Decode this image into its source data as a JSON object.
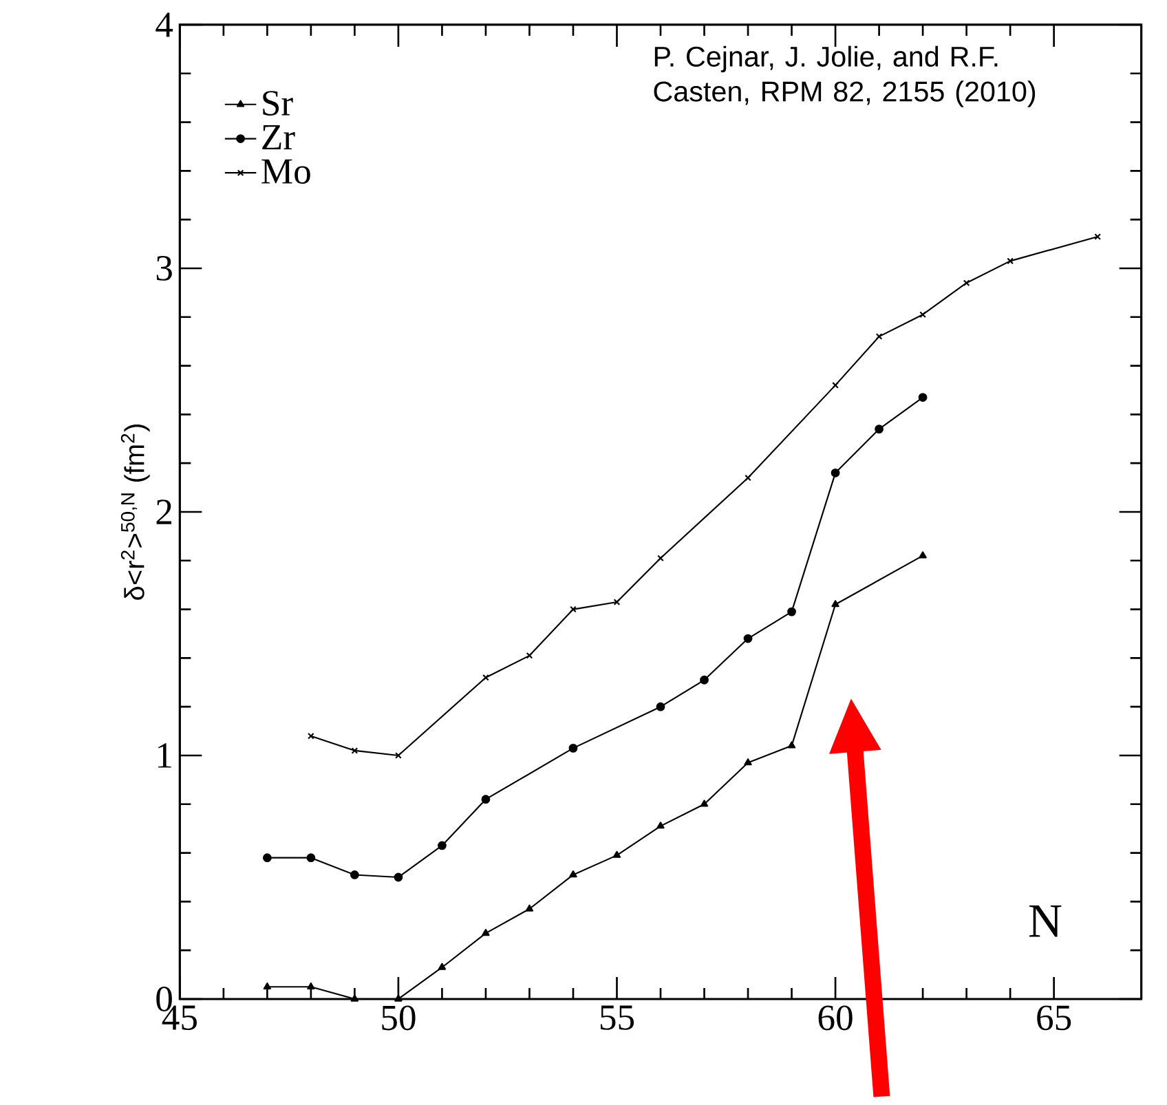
{
  "chart_data": {
    "type": "line",
    "xlabel": "N",
    "ylabel": "δ<r$^{2}$>$^{50,N}$ (fm$^{2}$)",
    "annotations": [
      "P. Cejnar, J. Jolie, and R.F. Casten, RPM 82, 2155 (2010)"
    ],
    "xlim": [
      45,
      67
    ],
    "xticks": [
      45,
      50,
      55,
      60,
      65
    ],
    "ylim": [
      0,
      4
    ],
    "yticks": [
      0,
      1,
      2,
      3,
      4
    ],
    "legend": "top left",
    "grid": false,
    "series": [
      {
        "name": "Sr",
        "color": "#000000",
        "marker": "triangle",
        "x": [
          47,
          48,
          49,
          50,
          51,
          52,
          53,
          54,
          55,
          56,
          57,
          58,
          59,
          60,
          62
        ],
        "values": [
          0.05,
          0.05,
          0.0,
          0.0,
          0.13,
          0.27,
          0.37,
          0.51,
          0.59,
          0.71,
          0.8,
          0.97,
          1.04,
          1.62,
          1.82
        ]
      },
      {
        "name": "Zr",
        "color": "#000000",
        "marker": "circle",
        "x": [
          47,
          48,
          49,
          50,
          51,
          52,
          54,
          56,
          57,
          58,
          59,
          60,
          61,
          62
        ],
        "values": [
          0.58,
          0.58,
          0.51,
          0.5,
          0.63,
          0.82,
          1.03,
          1.2,
          1.31,
          1.48,
          1.59,
          2.16,
          2.34,
          2.47
        ]
      },
      {
        "name": "Mo",
        "color": "#000000",
        "marker": "cross",
        "x": [
          48,
          49,
          50,
          52,
          53,
          54,
          55,
          56,
          58,
          60,
          61,
          62,
          63,
          64,
          66
        ],
        "values": [
          1.08,
          1.02,
          1.0,
          1.32,
          1.41,
          1.6,
          1.63,
          1.81,
          2.14,
          2.52,
          2.72,
          2.81,
          2.94,
          3.03,
          3.13
        ]
      }
    ]
  }
}
